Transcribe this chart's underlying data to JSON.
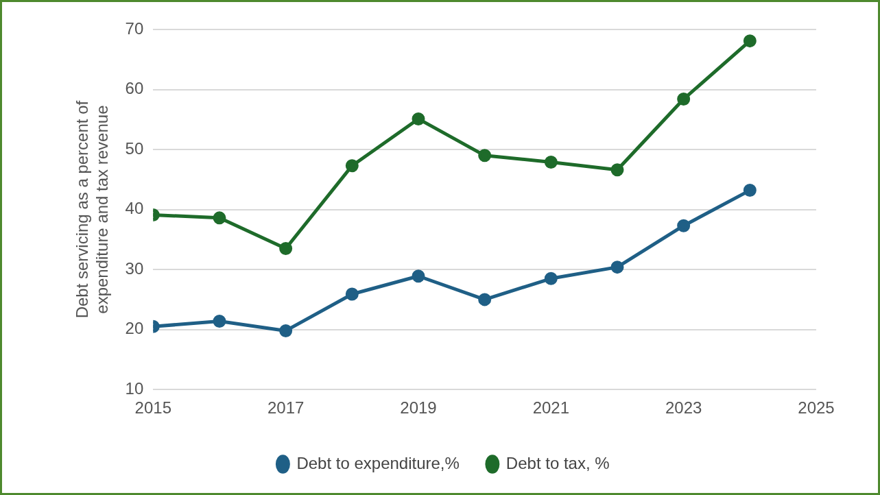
{
  "chart_data": {
    "type": "line",
    "ylabel": "Debt servicing as a percent of expenditure and tax revenue",
    "x": [
      2015,
      2016,
      2017,
      2018,
      2019,
      2020,
      2021,
      2022,
      2023,
      2024
    ],
    "series": [
      {
        "name": "Debt to expenditure,%",
        "color": "#1f5f86",
        "values": [
          20.5,
          21.4,
          19.8,
          25.9,
          28.9,
          25.0,
          28.5,
          30.4,
          37.3,
          43.2
        ]
      },
      {
        "name": "Debt to tax, %",
        "color": "#1e6b2a",
        "values": [
          39.1,
          38.6,
          33.5,
          47.3,
          55.1,
          49.0,
          47.9,
          46.6,
          58.4,
          68.1
        ]
      }
    ],
    "xlim": [
      2015,
      2025
    ],
    "xticks": [
      2015,
      2017,
      2019,
      2021,
      2023,
      2025
    ],
    "ylim": [
      10,
      70
    ],
    "yticks": [
      10,
      20,
      30,
      40,
      50,
      60,
      70
    ],
    "grid": "y",
    "legend": "bottom",
    "marker": "circle",
    "line_style": "solid"
  }
}
